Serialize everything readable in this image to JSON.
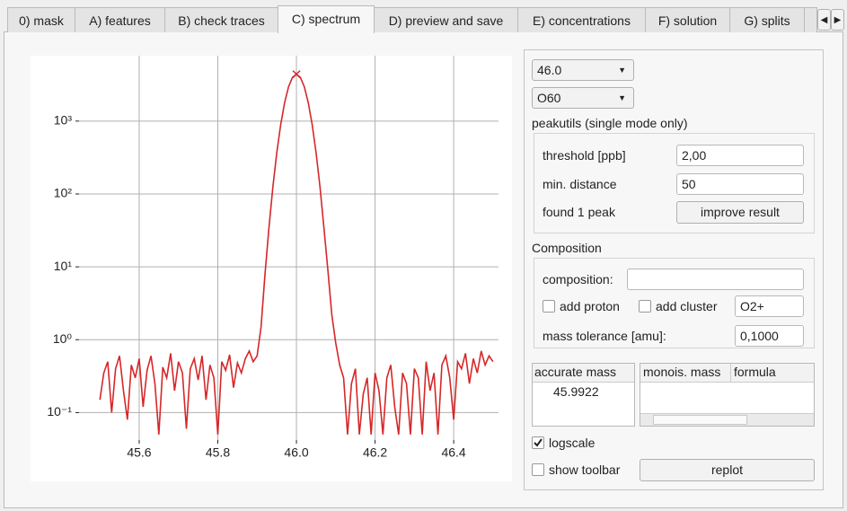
{
  "tabs": [
    "0) mask",
    "A) features",
    "B) check traces",
    "C) spectrum",
    "D) preview and save",
    "E) concentrations",
    "F) solution",
    "G) splits"
  ],
  "chart_data": {
    "type": "line",
    "yscale": "log",
    "grid": true,
    "xlim": [
      45.447,
      46.514
    ],
    "ylim": [
      0.042,
      7900
    ],
    "xticks": [
      45.6,
      45.8,
      {
        "value": 46.0,
        "label": "46.0"
      },
      46.2,
      46.4
    ],
    "yticks": [
      {
        "value": 0.1,
        "label": "10⁻¹"
      },
      {
        "value": 1,
        "label": "10⁰"
      },
      {
        "value": 10,
        "label": "10¹"
      },
      {
        "value": 100,
        "label": "10²"
      },
      {
        "value": 1000,
        "label": "10³"
      }
    ],
    "x": [
      45.5,
      45.51,
      45.52,
      45.53,
      45.54,
      45.55,
      45.56,
      45.57,
      45.58,
      45.59,
      45.6,
      45.61,
      45.62,
      45.63,
      45.64,
      45.65,
      45.66,
      45.67,
      45.68,
      45.69,
      45.7,
      45.71,
      45.72,
      45.73,
      45.74,
      45.75,
      45.76,
      45.77,
      45.78,
      45.79,
      45.8,
      45.81,
      45.82,
      45.83,
      45.84,
      45.85,
      45.86,
      45.87,
      45.88,
      45.89,
      45.9,
      45.91,
      45.92,
      45.93,
      45.94,
      45.95,
      45.96,
      45.97,
      45.98,
      45.99,
      46.0,
      46.01,
      46.02,
      46.03,
      46.04,
      46.05,
      46.06,
      46.07,
      46.08,
      46.09,
      46.1,
      46.11,
      46.12,
      46.13,
      46.14,
      46.15,
      46.16,
      46.17,
      46.18,
      46.19,
      46.2,
      46.21,
      46.22,
      46.23,
      46.24,
      46.25,
      46.26,
      46.27,
      46.28,
      46.29,
      46.3,
      46.31,
      46.32,
      46.33,
      46.34,
      46.35,
      46.36,
      46.37,
      46.38,
      46.39,
      46.4,
      46.41,
      46.42,
      46.43,
      46.44,
      46.45,
      46.46,
      46.47,
      46.48,
      46.49,
      46.5
    ],
    "series": [
      {
        "color": "#d62728",
        "values": [
          0.15,
          0.35,
          0.5,
          0.1,
          0.4,
          0.6,
          0.2,
          0.08,
          0.45,
          0.3,
          0.55,
          0.12,
          0.38,
          0.6,
          0.25,
          0.05,
          0.42,
          0.3,
          0.65,
          0.2,
          0.5,
          0.35,
          0.06,
          0.4,
          0.55,
          0.28,
          0.6,
          0.15,
          0.45,
          0.3,
          0.05,
          0.5,
          0.38,
          0.62,
          0.22,
          0.48,
          0.35,
          0.55,
          0.7,
          0.5,
          0.6,
          1.5,
          7.9,
          34,
          124,
          368,
          898,
          1800,
          2960,
          3985,
          4400,
          3985,
          2960,
          1800,
          898,
          368,
          124,
          34,
          9,
          2.2,
          0.9,
          0.45,
          0.3,
          0.05,
          0.25,
          0.4,
          0.05,
          0.18,
          0.3,
          0.05,
          0.35,
          0.2,
          0.05,
          0.3,
          0.45,
          0.12,
          0.05,
          0.35,
          0.25,
          0.05,
          0.4,
          0.3,
          0.05,
          0.5,
          0.2,
          0.35,
          0.05,
          0.45,
          0.6,
          0.3,
          0.08,
          0.5,
          0.4,
          0.65,
          0.25,
          0.55,
          0.35,
          0.7,
          0.45,
          0.6,
          0.5
        ]
      }
    ],
    "peak": {
      "x": 46.0,
      "y": 4400,
      "color": "#d62728"
    }
  },
  "controls": {
    "mass_select": "46.0",
    "formula_select": "O60",
    "peakutils_label": "peakutils (single mode only)",
    "threshold_label": "threshold [ppb]",
    "threshold_value": "2,00",
    "distance_label": "min. distance",
    "distance_value": "50",
    "found_label": "found 1 peak",
    "improve_button": "improve result",
    "composition_group": "Composition",
    "composition_label": "composition:",
    "add_proton": "add proton",
    "add_cluster": "add cluster",
    "cluster_value": "O2+",
    "tolerance_label": "mass tolerance [amu]:",
    "tolerance_value": "0,1000",
    "table1": {
      "header": "accurate mass",
      "rows": [
        "45.9922"
      ]
    },
    "table2": {
      "headers": [
        "monois. mass",
        "formula"
      ]
    },
    "logscale": "logscale",
    "show_toolbar": "show toolbar",
    "replot_button": "replot"
  }
}
